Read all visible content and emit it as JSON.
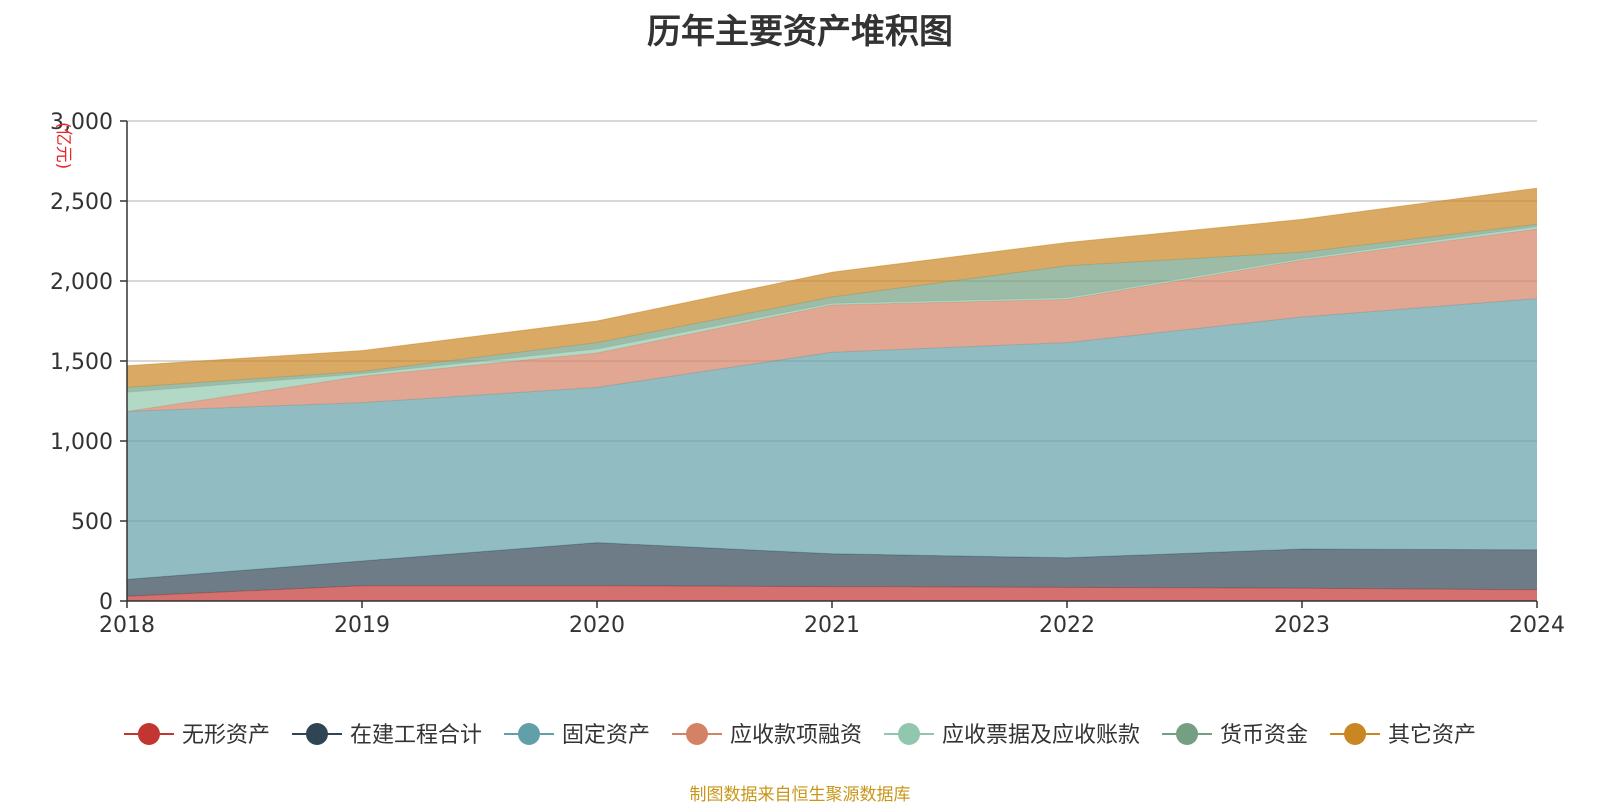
{
  "chart_data": {
    "type": "area",
    "stacked": true,
    "title": "历年主要资产堆积图",
    "unit_label": "(亿元)",
    "x": [
      "2018",
      "2019",
      "2020",
      "2021",
      "2022",
      "2023",
      "2024"
    ],
    "ylim": [
      0,
      3000
    ],
    "yticks": [
      "0",
      "500",
      "1,000",
      "1,500",
      "2,000",
      "2,500",
      "3,000"
    ],
    "ytick_values": [
      0,
      500,
      1000,
      1500,
      2000,
      2500,
      3000
    ],
    "grid": true,
    "legend_position": "bottom",
    "series": [
      {
        "name": "无形资产",
        "color": "#c23531",
        "values": [
          30,
          95,
          95,
          90,
          85,
          80,
          70
        ]
      },
      {
        "name": "在建工程合计",
        "color": "#2f4554",
        "values": [
          105,
          155,
          270,
          205,
          185,
          245,
          250
        ]
      },
      {
        "name": "固定资产",
        "color": "#61a0a8",
        "values": [
          1050,
          990,
          970,
          1260,
          1345,
          1450,
          1570
        ]
      },
      {
        "name": "应收款项融资",
        "color": "#d48265",
        "values": [
          0,
          165,
          215,
          295,
          270,
          355,
          435
        ]
      },
      {
        "name": "应收票据及应收账款",
        "color": "#91c7ae",
        "values": [
          120,
          15,
          25,
          10,
          10,
          10,
          15
        ]
      },
      {
        "name": "货币资金",
        "color": "#749f83",
        "values": [
          30,
          15,
          40,
          40,
          200,
          40,
          15
        ]
      },
      {
        "name": "其它资产",
        "color": "#ca8622",
        "values": [
          135,
          130,
          135,
          155,
          145,
          205,
          225
        ]
      }
    ],
    "source_note": "制图数据来自恒生聚源数据库"
  }
}
